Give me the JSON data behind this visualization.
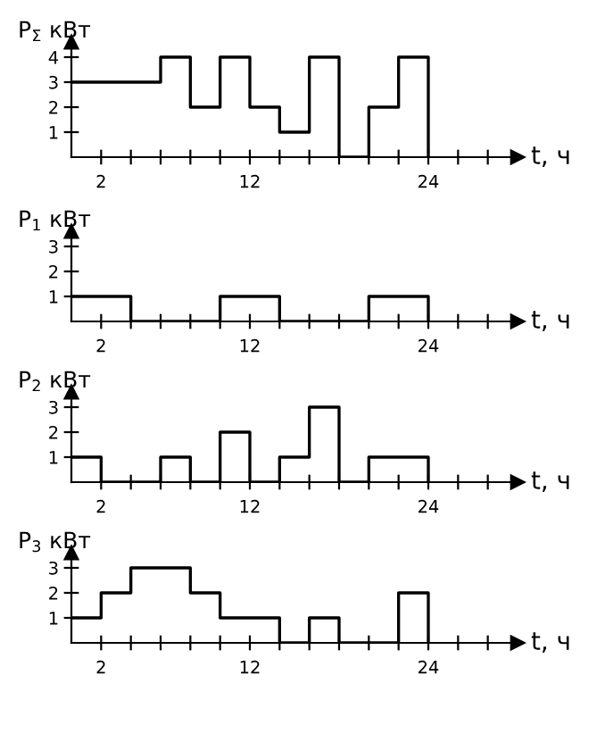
{
  "chart_data": [
    {
      "type": "step",
      "ylabel": "P$_{Σ}$ кВт",
      "xlabel": "t, ч",
      "x": [
        0,
        2,
        4,
        6,
        8,
        10,
        12,
        14,
        16,
        18,
        20,
        22,
        24
      ],
      "values": [
        3,
        3,
        3,
        4,
        2,
        4,
        2,
        1,
        4,
        0,
        2,
        4,
        0
      ],
      "color": "#000000",
      "xlim": [
        0,
        30
      ],
      "xticks": [
        {
          "value": 2,
          "label": "2"
        },
        {
          "value": 4,
          "label": null
        },
        {
          "value": 6,
          "label": null
        },
        {
          "value": 8,
          "label": null
        },
        {
          "value": 10,
          "label": null
        },
        {
          "value": 12,
          "label": "12"
        },
        {
          "value": 14,
          "label": null
        },
        {
          "value": 16,
          "label": null
        },
        {
          "value": 18,
          "label": null
        },
        {
          "value": 20,
          "label": null
        },
        {
          "value": 22,
          "label": null
        },
        {
          "value": 24,
          "label": "24"
        },
        {
          "value": 26,
          "label": null
        },
        {
          "value": 28,
          "label": null
        }
      ],
      "ylim": [
        0,
        4.6
      ],
      "yticks": [
        1,
        2,
        3,
        4
      ],
      "grid": false,
      "legend": false
    },
    {
      "type": "step",
      "ylabel": "P$_{1}$ кВт",
      "xlabel": "t, ч",
      "x": [
        0,
        2,
        4,
        6,
        8,
        10,
        12,
        14,
        16,
        18,
        20,
        22,
        24
      ],
      "values": [
        1,
        1,
        0,
        0,
        0,
        1,
        1,
        0,
        0,
        0,
        1,
        1,
        0
      ],
      "color": "#000000",
      "xlim": [
        0,
        30
      ],
      "xticks": [
        {
          "value": 2,
          "label": "2"
        },
        {
          "value": 4,
          "label": null
        },
        {
          "value": 6,
          "label": null
        },
        {
          "value": 8,
          "label": null
        },
        {
          "value": 10,
          "label": null
        },
        {
          "value": 12,
          "label": "12"
        },
        {
          "value": 14,
          "label": null
        },
        {
          "value": 16,
          "label": null
        },
        {
          "value": 18,
          "label": null
        },
        {
          "value": 20,
          "label": null
        },
        {
          "value": 22,
          "label": null
        },
        {
          "value": 24,
          "label": "24"
        },
        {
          "value": 26,
          "label": null
        },
        {
          "value": 28,
          "label": null
        }
      ],
      "ylim": [
        0,
        3.6
      ],
      "yticks": [
        1,
        2,
        3
      ],
      "grid": false,
      "legend": false
    },
    {
      "type": "step",
      "ylabel": "P$_{2}$ кВт",
      "xlabel": "t, ч",
      "x": [
        0,
        2,
        4,
        6,
        8,
        10,
        12,
        14,
        16,
        18,
        20,
        22,
        24
      ],
      "values": [
        1,
        0,
        0,
        1,
        0,
        2,
        0,
        1,
        3,
        0,
        1,
        1,
        0
      ],
      "color": "#000000",
      "xlim": [
        0,
        30
      ],
      "xticks": [
        {
          "value": 2,
          "label": "2"
        },
        {
          "value": 4,
          "label": null
        },
        {
          "value": 6,
          "label": null
        },
        {
          "value": 8,
          "label": null
        },
        {
          "value": 10,
          "label": null
        },
        {
          "value": 12,
          "label": "12"
        },
        {
          "value": 14,
          "label": null
        },
        {
          "value": 16,
          "label": null
        },
        {
          "value": 18,
          "label": null
        },
        {
          "value": 20,
          "label": null
        },
        {
          "value": 22,
          "label": null
        },
        {
          "value": 24,
          "label": "24"
        },
        {
          "value": 26,
          "label": null
        },
        {
          "value": 28,
          "label": null
        }
      ],
      "ylim": [
        0,
        3.6
      ],
      "yticks": [
        1,
        2,
        3
      ],
      "grid": false,
      "legend": false
    },
    {
      "type": "step",
      "ylabel": "P$_{3}$ кВт",
      "xlabel": "t, ч",
      "x": [
        0,
        2,
        4,
        6,
        8,
        10,
        12,
        14,
        16,
        18,
        20,
        22,
        24
      ],
      "values": [
        1,
        2,
        3,
        3,
        2,
        1,
        1,
        0,
        1,
        0,
        0,
        2,
        0
      ],
      "color": "#000000",
      "xlim": [
        0,
        30
      ],
      "xticks": [
        {
          "value": 2,
          "label": "2"
        },
        {
          "value": 4,
          "label": null
        },
        {
          "value": 6,
          "label": null
        },
        {
          "value": 8,
          "label": null
        },
        {
          "value": 10,
          "label": null
        },
        {
          "value": 12,
          "label": "12"
        },
        {
          "value": 14,
          "label": null
        },
        {
          "value": 16,
          "label": null
        },
        {
          "value": 18,
          "label": null
        },
        {
          "value": 20,
          "label": null
        },
        {
          "value": 22,
          "label": null
        },
        {
          "value": 24,
          "label": "24"
        },
        {
          "value": 26,
          "label": null
        },
        {
          "value": 28,
          "label": null
        }
      ],
      "ylim": [
        0,
        3.6
      ],
      "yticks": [
        1,
        2,
        3
      ],
      "grid": false,
      "legend": false
    }
  ]
}
